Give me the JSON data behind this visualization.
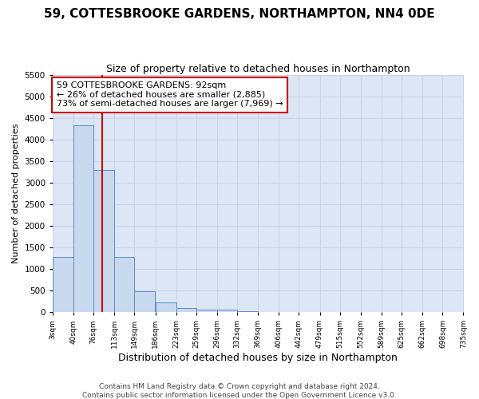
{
  "title": "59, COTTESBROOKE GARDENS, NORTHAMPTON, NN4 0DE",
  "subtitle": "Size of property relative to detached houses in Northampton",
  "xlabel": "Distribution of detached houses by size in Northampton",
  "ylabel": "Number of detached properties",
  "footer_line1": "Contains HM Land Registry data © Crown copyright and database right 2024.",
  "footer_line2": "Contains public sector information licensed under the Open Government Licence v3.0.",
  "bin_edges": [
    3,
    40,
    76,
    113,
    149,
    186,
    223,
    259,
    296,
    332,
    369,
    406,
    442,
    479,
    515,
    552,
    589,
    625,
    662,
    698,
    735
  ],
  "bin_labels": [
    "3sqm",
    "40sqm",
    "76sqm",
    "113sqm",
    "149sqm",
    "186sqm",
    "223sqm",
    "259sqm",
    "296sqm",
    "332sqm",
    "369sqm",
    "406sqm",
    "442sqm",
    "479sqm",
    "515sqm",
    "552sqm",
    "589sqm",
    "625sqm",
    "662sqm",
    "698sqm",
    "735sqm"
  ],
  "bar_heights": [
    1270,
    4330,
    3300,
    1280,
    480,
    215,
    85,
    60,
    55,
    20,
    10,
    5,
    3,
    2,
    2,
    1,
    1,
    1,
    0,
    0
  ],
  "bar_color": "#c8d8ef",
  "bar_edge_color": "#5a8fc0",
  "property_size": 92,
  "annotation_line1": "59 COTTESBROOKE GARDENS: 92sqm",
  "annotation_line2": "← 26% of detached houses are smaller (2,885)",
  "annotation_line3": "73% of semi-detached houses are larger (7,969) →",
  "red_line_color": "#cc0000",
  "annotation_box_facecolor": "#ffffff",
  "annotation_box_edgecolor": "#cc0000",
  "grid_color": "#c8d4e8",
  "plot_bg_color": "#dde6f5",
  "figure_bg_color": "#ffffff",
  "ylim": [
    0,
    5500
  ],
  "xlim_start": 3,
  "xlim_end": 735,
  "title_fontsize": 11,
  "subtitle_fontsize": 9,
  "ylabel_fontsize": 8,
  "xlabel_fontsize": 9,
  "annotation_fontsize": 8,
  "footer_fontsize": 6.5,
  "yticks": [
    0,
    500,
    1000,
    1500,
    2000,
    2500,
    3000,
    3500,
    4000,
    4500,
    5000,
    5500
  ]
}
